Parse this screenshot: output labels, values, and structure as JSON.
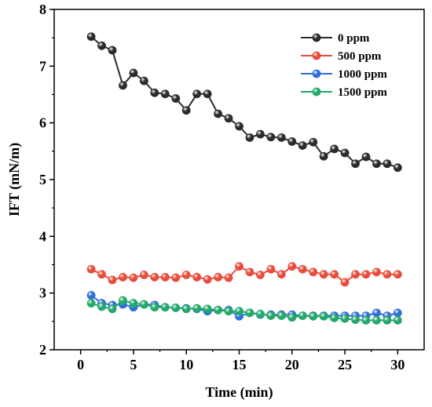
{
  "chart_data": {
    "type": "line",
    "xlabel": "Time (min)",
    "ylabel": "IFT (mN/m)",
    "xlim": [
      -2.5,
      32.5
    ],
    "ylim": [
      2,
      8
    ],
    "xticks": [
      0,
      5,
      10,
      15,
      20,
      25,
      30
    ],
    "yticks": [
      2,
      3,
      4,
      5,
      6,
      7,
      8
    ],
    "legend_position": "top-right",
    "x": [
      1,
      2,
      3,
      4,
      5,
      6,
      7,
      8,
      9,
      10,
      11,
      12,
      13,
      14,
      15,
      16,
      17,
      18,
      19,
      20,
      21,
      22,
      23,
      24,
      25,
      26,
      27,
      28,
      29,
      30
    ],
    "series": [
      {
        "name": "0 ppm",
        "color": "#2b2b2b",
        "values": [
          7.52,
          7.36,
          7.28,
          6.66,
          6.88,
          6.74,
          6.53,
          6.51,
          6.43,
          6.22,
          6.51,
          6.51,
          6.16,
          6.08,
          5.94,
          5.74,
          5.8,
          5.75,
          5.74,
          5.67,
          5.6,
          5.66,
          5.41,
          5.54,
          5.47,
          5.28,
          5.4,
          5.28,
          5.28,
          5.21
        ]
      },
      {
        "name": "500 ppm",
        "color": "#e84c3d",
        "values": [
          3.42,
          3.33,
          3.23,
          3.28,
          3.27,
          3.32,
          3.28,
          3.28,
          3.27,
          3.32,
          3.28,
          3.24,
          3.28,
          3.27,
          3.47,
          3.37,
          3.32,
          3.42,
          3.33,
          3.47,
          3.42,
          3.37,
          3.33,
          3.33,
          3.19,
          3.33,
          3.33,
          3.37,
          3.33,
          3.33
        ]
      },
      {
        "name": "1000 ppm",
        "color": "#2f6fd6",
        "values": [
          2.96,
          2.82,
          2.79,
          2.8,
          2.75,
          2.8,
          2.79,
          2.75,
          2.74,
          2.73,
          2.72,
          2.68,
          2.7,
          2.7,
          2.59,
          2.65,
          2.62,
          2.62,
          2.62,
          2.62,
          2.6,
          2.6,
          2.6,
          2.6,
          2.6,
          2.6,
          2.6,
          2.65,
          2.6,
          2.65
        ]
      },
      {
        "name": "1500 ppm",
        "color": "#23a86b",
        "values": [
          2.82,
          2.76,
          2.72,
          2.87,
          2.82,
          2.8,
          2.75,
          2.75,
          2.74,
          2.72,
          2.73,
          2.72,
          2.7,
          2.68,
          2.68,
          2.65,
          2.63,
          2.6,
          2.6,
          2.57,
          2.6,
          2.59,
          2.59,
          2.56,
          2.55,
          2.53,
          2.52,
          2.52,
          2.52,
          2.52
        ]
      }
    ]
  }
}
